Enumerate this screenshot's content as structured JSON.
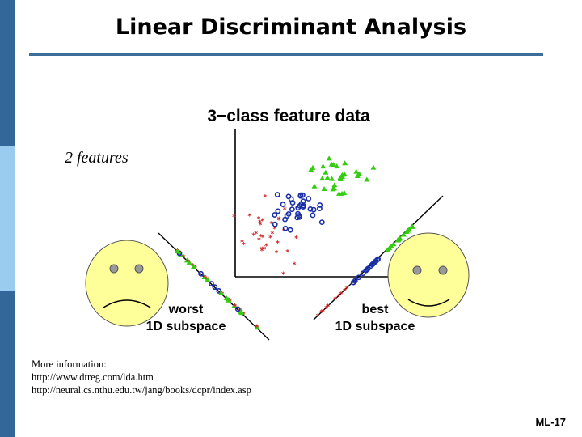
{
  "slide": {
    "title": "Linear Discriminant Analysis",
    "features_label": "2 features",
    "slide_number": "ML-17",
    "more_info": [
      "More information:",
      "http://www.dtreg.com/lda.htm",
      "http://neural.cs.nthu.edu.tw/jang/books/dcpr/index.asp"
    ]
  },
  "colors": {
    "sidebar_dark": "#336699",
    "sidebar_light": "#99ccee",
    "rule": "#3b6e99",
    "face_fill": "#ffff99",
    "class_red": "#cc2222",
    "class_blue": "#1a2ea8",
    "class_green": "#33cc11"
  },
  "figure": {
    "title": "3−class feature data",
    "worst_label": [
      "worst",
      "1D subspace"
    ],
    "best_label": [
      "best",
      "1D subspace"
    ],
    "faces": [
      "sad-face",
      "happy-face"
    ]
  }
}
